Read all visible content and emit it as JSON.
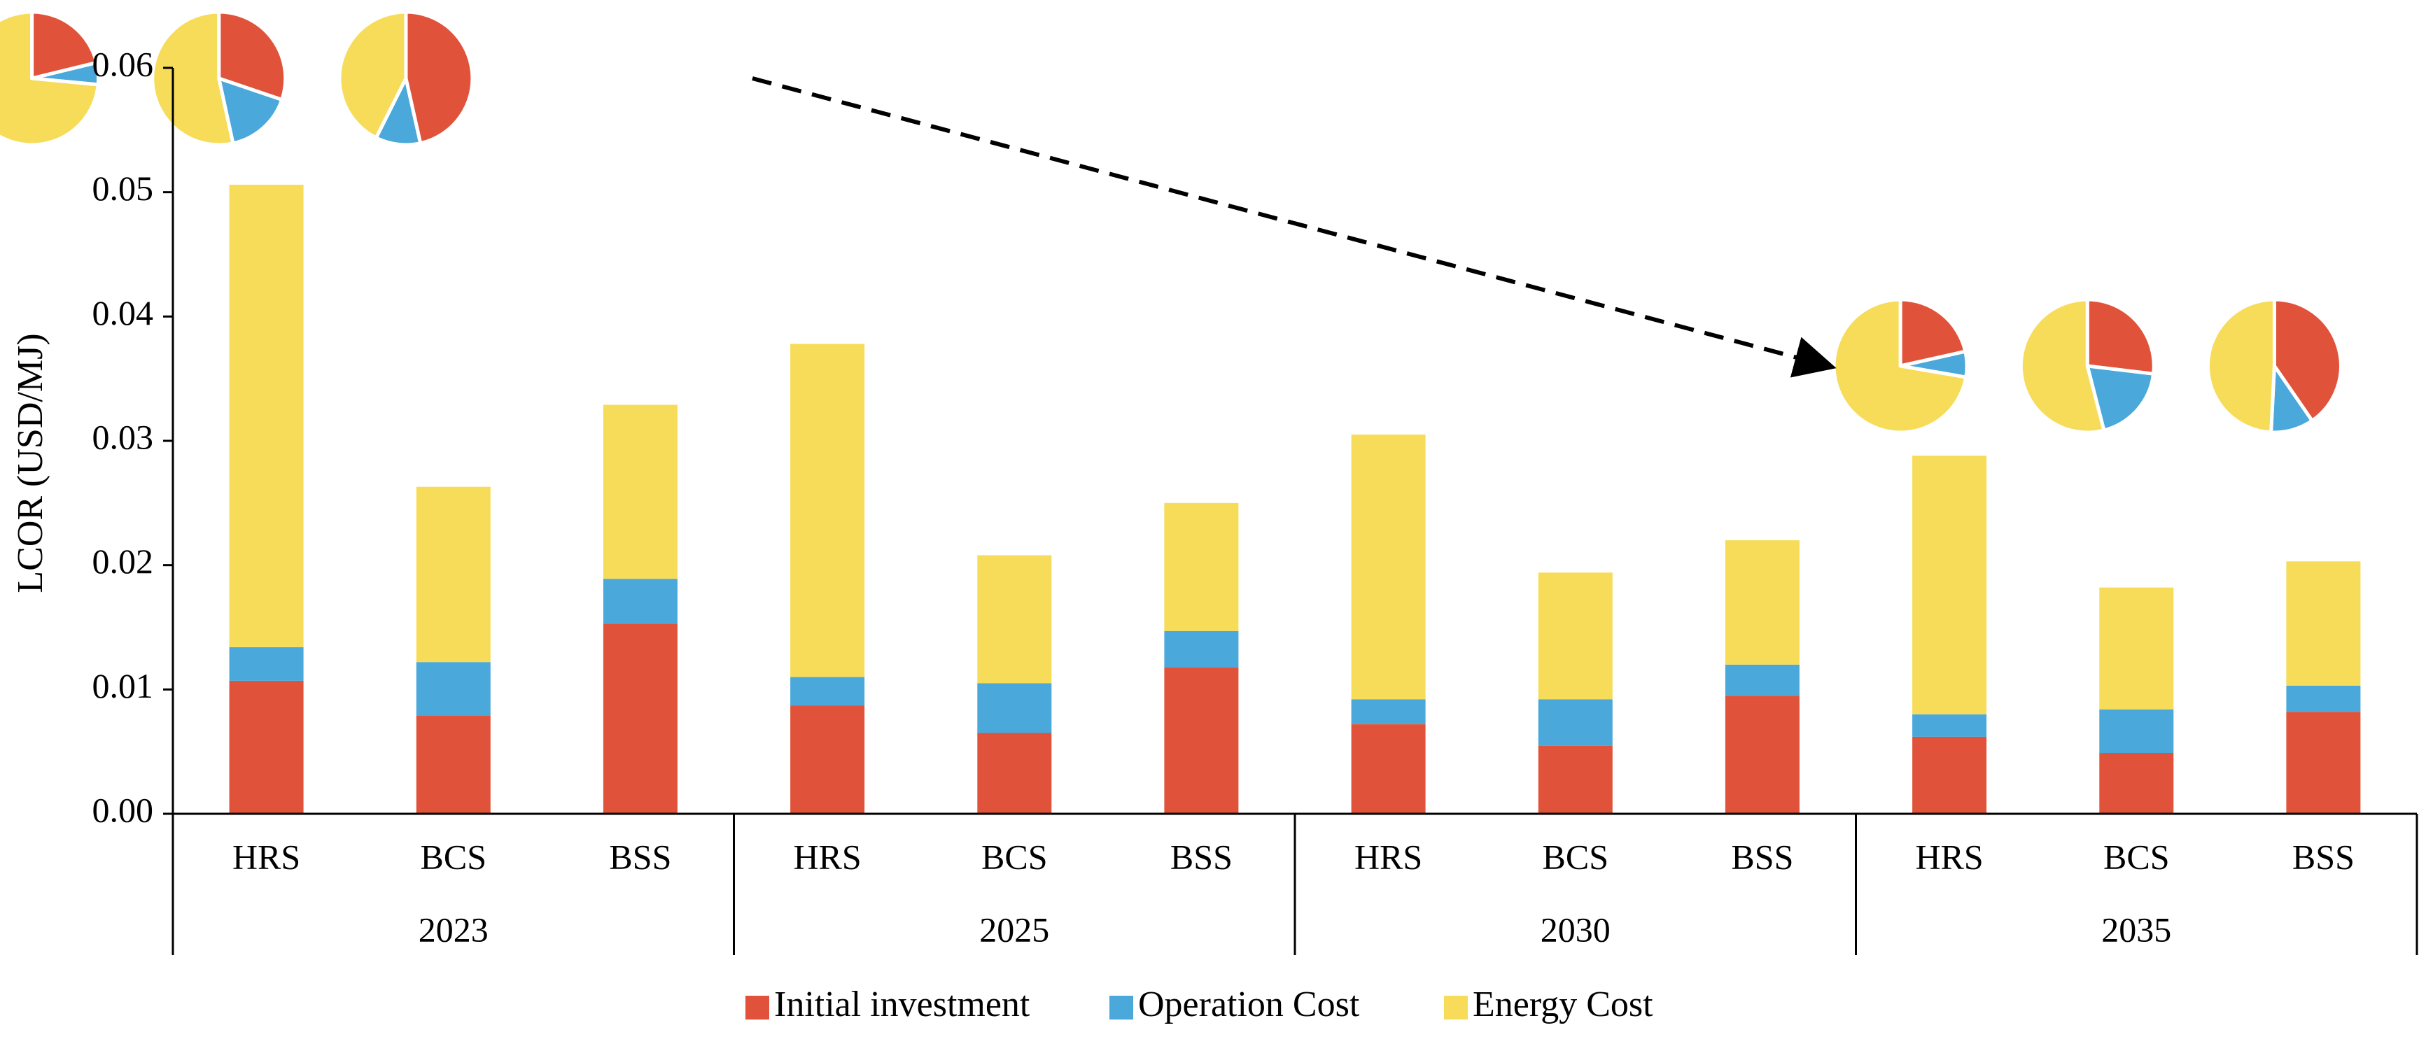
{
  "chart_data": {
    "type": "bar",
    "stacked": true,
    "title": "",
    "xlabel": "",
    "ylabel": "LCOR (USD/MJ)",
    "ylim": [
      0,
      0.06
    ],
    "yticks": [
      "0.00",
      "0.01",
      "0.02",
      "0.03",
      "0.04",
      "0.05",
      "0.06"
    ],
    "groups": [
      {
        "label": "2023",
        "categories": [
          "HRS",
          "BCS",
          "BSS"
        ]
      },
      {
        "label": "2025",
        "categories": [
          "HRS",
          "BCS",
          "BSS"
        ]
      },
      {
        "label": "2030",
        "categories": [
          "HRS",
          "BCS",
          "BSS"
        ]
      },
      {
        "label": "2035",
        "categories": [
          "HRS",
          "BCS",
          "BSS"
        ]
      }
    ],
    "series": [
      {
        "name": "Initial investment",
        "color": "#E0533A",
        "values": [
          0.0107,
          0.0079,
          0.0153,
          0.0087,
          0.0065,
          0.0118,
          0.0072,
          0.0055,
          0.0095,
          0.0062,
          0.0049,
          0.0082
        ]
      },
      {
        "name": "Operation Cost",
        "color": "#4AA8DA",
        "values": [
          0.0027,
          0.0043,
          0.0036,
          0.0023,
          0.004,
          0.0029,
          0.002,
          0.0037,
          0.0025,
          0.0018,
          0.0035,
          0.0021
        ]
      },
      {
        "name": "Energy Cost",
        "color": "#F7DC5A",
        "values": [
          0.0372,
          0.0141,
          0.014,
          0.0268,
          0.0103,
          0.0103,
          0.0213,
          0.0102,
          0.01,
          0.0208,
          0.0098,
          0.01
        ]
      }
    ],
    "legend_position": "bottom",
    "grid": false,
    "inset_pies": [
      {
        "year": "2023",
        "category": "HRS",
        "shares": [
          0.212,
          0.053,
          0.735
        ]
      },
      {
        "year": "2023",
        "category": "BCS",
        "shares": [
          0.302,
          0.164,
          0.534
        ]
      },
      {
        "year": "2023",
        "category": "BSS",
        "shares": [
          0.465,
          0.109,
          0.426
        ]
      },
      {
        "year": "2035",
        "category": "HRS",
        "shares": [
          0.215,
          0.062,
          0.723
        ]
      },
      {
        "year": "2035",
        "category": "BCS",
        "shares": [
          0.269,
          0.191,
          0.54
        ]
      },
      {
        "year": "2035",
        "category": "BSS",
        "shares": [
          0.404,
          0.104,
          0.492
        ]
      }
    ],
    "annotation": "dashed arrow from 2023 pies to 2035 pies"
  }
}
